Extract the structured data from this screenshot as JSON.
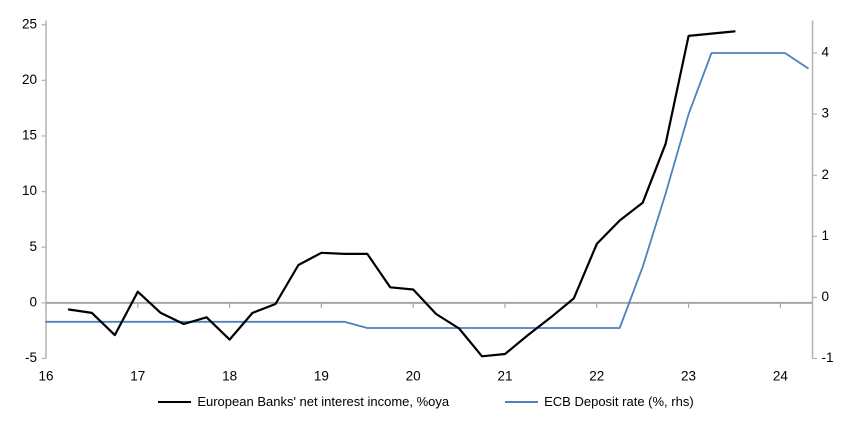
{
  "chart_data": {
    "type": "line",
    "title": "",
    "legend_position": "bottom",
    "grid": "zero-line-only",
    "x_axis": {
      "range": [
        16,
        24.35
      ],
      "ticks": [
        16,
        17,
        18,
        19,
        20,
        21,
        22,
        23,
        24
      ],
      "labels": [
        "16",
        "17",
        "18",
        "19",
        "20",
        "21",
        "22",
        "23",
        "24"
      ]
    },
    "y_axis_left": {
      "range": [
        -5,
        25.2
      ],
      "ticks": [
        -5,
        0,
        5,
        10,
        15,
        20,
        25
      ],
      "labels": [
        "-5",
        "0",
        "5",
        "10",
        "15",
        "20",
        "25"
      ]
    },
    "y_axis_right": {
      "range": [
        -1,
        4.5
      ],
      "ticks": [
        -1,
        0,
        1,
        2,
        3,
        4
      ],
      "labels": [
        "-1",
        "0",
        "1",
        "2",
        "3",
        "4"
      ]
    },
    "series": [
      {
        "name": "European Banks' net interest income, %oya",
        "axis": "left",
        "color": "#000000",
        "width": 2.2,
        "x": [
          16.25,
          16.5,
          16.75,
          17.0,
          17.25,
          17.5,
          17.75,
          18.0,
          18.25,
          18.5,
          18.75,
          19.0,
          19.25,
          19.5,
          19.75,
          20.0,
          20.25,
          20.5,
          20.75,
          21.0,
          21.25,
          21.5,
          21.75,
          22.0,
          22.25,
          22.5,
          22.75,
          23.0,
          23.25,
          23.5
        ],
        "y": [
          -0.6,
          -0.9,
          -2.9,
          1.0,
          -0.9,
          -1.9,
          -1.3,
          -3.3,
          -0.9,
          -0.1,
          3.4,
          4.5,
          4.4,
          4.4,
          1.4,
          1.2,
          -1.0,
          -2.3,
          -4.8,
          -4.6,
          -2.9,
          -1.3,
          0.4,
          5.3,
          7.4,
          9.0,
          14.3,
          24.0,
          24.2,
          24.4
        ]
      },
      {
        "name": "ECB Deposit rate (%, rhs)",
        "axis": "right",
        "color": "#4f81bd",
        "width": 1.8,
        "x": [
          16.0,
          19.25,
          19.5,
          22.25,
          22.5,
          22.75,
          23.0,
          23.25,
          24.05,
          24.3
        ],
        "y": [
          -0.4,
          -0.4,
          -0.5,
          -0.5,
          0.5,
          1.7,
          3.0,
          4.0,
          4.0,
          3.75
        ]
      }
    ]
  },
  "colors": {
    "axis_line": "#b3b3b3",
    "zero_line": "#a6a6a6",
    "tick_text": "#000000",
    "background": "#ffffff"
  }
}
